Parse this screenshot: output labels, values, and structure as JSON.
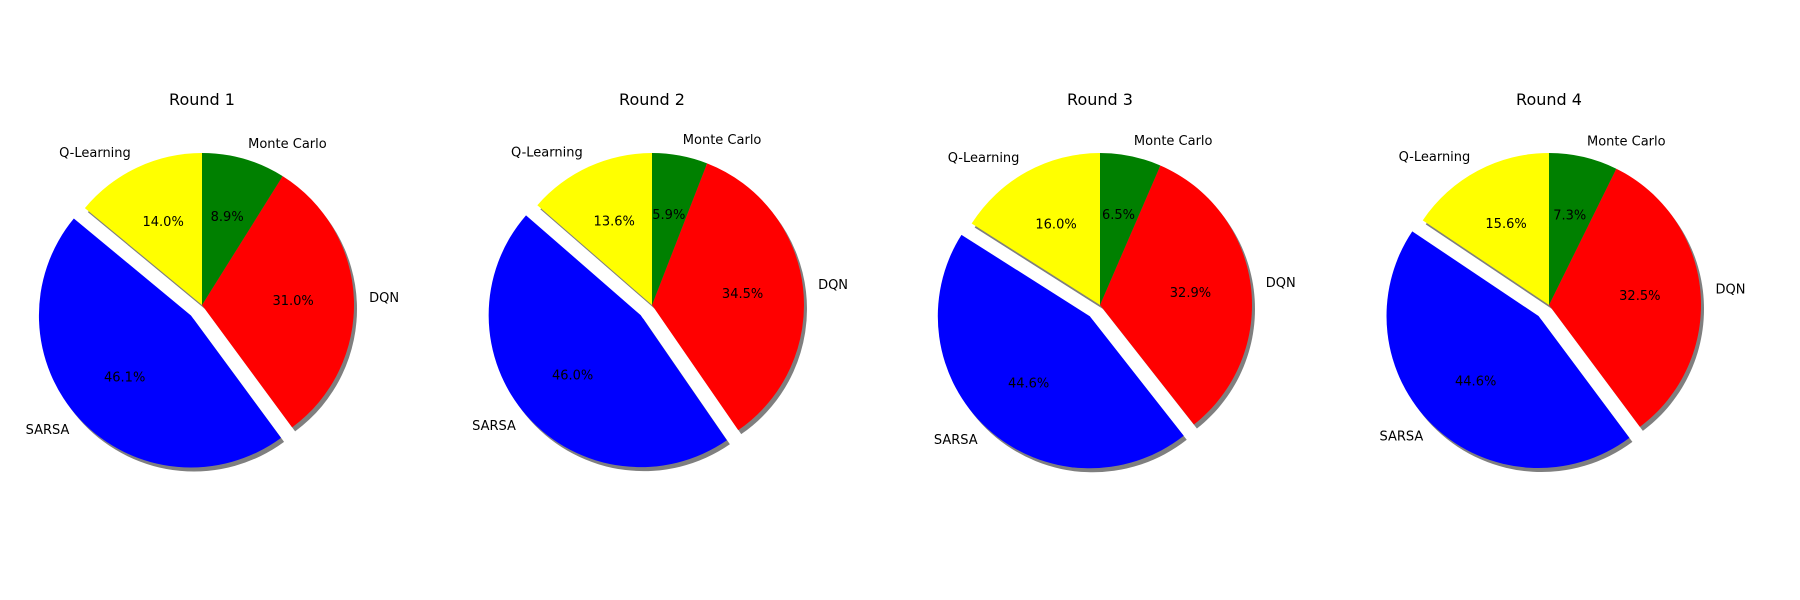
{
  "chart_data": [
    {
      "type": "pie",
      "title": "Round 1",
      "categories": [
        "Q-Learning",
        "SARSA",
        "DQN",
        "Monte Carlo"
      ],
      "values": [
        14.0,
        46.1,
        31.0,
        8.9
      ],
      "value_labels": [
        "14.0%",
        "46.1%",
        "31.0%",
        "8.9%"
      ],
      "colors": [
        "#ffff00",
        "#0000ff",
        "#ff0000",
        "#008000"
      ],
      "explode": [
        0,
        0.1,
        0,
        0
      ],
      "start_angle_deg": 90,
      "direction": "counterclockwise",
      "shadow": true
    },
    {
      "type": "pie",
      "title": "Round 2",
      "categories": [
        "Q-Learning",
        "SARSA",
        "DQN",
        "Monte Carlo"
      ],
      "values": [
        13.6,
        46.0,
        34.5,
        5.9
      ],
      "value_labels": [
        "13.6%",
        "46.0%",
        "34.5%",
        "5.9%"
      ],
      "colors": [
        "#ffff00",
        "#0000ff",
        "#ff0000",
        "#008000"
      ],
      "explode": [
        0,
        0.1,
        0,
        0
      ],
      "start_angle_deg": 90,
      "direction": "counterclockwise",
      "shadow": true
    },
    {
      "type": "pie",
      "title": "Round 3",
      "categories": [
        "Q-Learning",
        "SARSA",
        "DQN",
        "Monte Carlo"
      ],
      "values": [
        16.0,
        44.6,
        32.9,
        6.5
      ],
      "value_labels": [
        "16.0%",
        "44.6%",
        "32.9%",
        "6.5%"
      ],
      "colors": [
        "#ffff00",
        "#0000ff",
        "#ff0000",
        "#008000"
      ],
      "explode": [
        0,
        0.1,
        0,
        0
      ],
      "start_angle_deg": 90,
      "direction": "counterclockwise",
      "shadow": true
    },
    {
      "type": "pie",
      "title": "Round 4",
      "categories": [
        "Q-Learning",
        "SARSA",
        "DQN",
        "Monte Carlo"
      ],
      "values": [
        15.6,
        44.6,
        32.5,
        7.3
      ],
      "value_labels": [
        "15.6%",
        "44.6%",
        "32.5%",
        "7.3%"
      ],
      "colors": [
        "#ffff00",
        "#0000ff",
        "#ff0000",
        "#008000"
      ],
      "explode": [
        0,
        0.1,
        0,
        0
      ],
      "start_angle_deg": 90,
      "direction": "counterclockwise",
      "shadow": true
    }
  ]
}
